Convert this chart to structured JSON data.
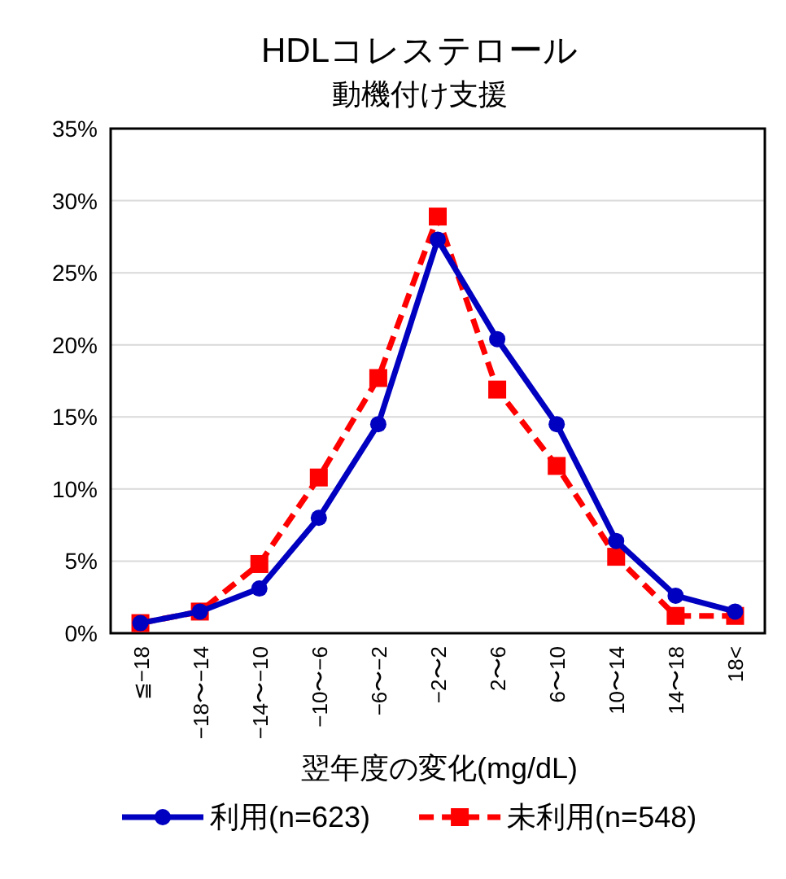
{
  "chart_data": {
    "type": "line",
    "title": "HDLコレステロール",
    "subtitle": "動機付け支援",
    "xlabel": "翌年度の変化(mg/dL)",
    "categories": [
      "≦−18",
      "−18〜−14",
      "−14〜−10",
      "−10〜−6",
      "−6〜−2",
      "−2〜2",
      "2〜6",
      "6〜10",
      "10〜14",
      "14〜18",
      "18<"
    ],
    "series": [
      {
        "name": "利用(n=623)",
        "color": "#0000c0",
        "marker": "circle",
        "line_style": "solid",
        "values": [
          0.7,
          1.5,
          3.1,
          8.0,
          14.5,
          27.3,
          20.4,
          14.5,
          6.4,
          2.6,
          1.5
        ]
      },
      {
        "name": "未利用(n=548)",
        "color": "#ff0000",
        "marker": "square",
        "line_style": "dashed",
        "values": [
          0.7,
          1.5,
          4.8,
          10.8,
          17.7,
          28.9,
          16.9,
          11.6,
          5.3,
          1.2,
          1.2
        ]
      }
    ],
    "ylim": [
      0,
      35
    ],
    "yticks": [
      {
        "value": 0,
        "label": "0%"
      },
      {
        "value": 5,
        "label": "5%"
      },
      {
        "value": 10,
        "label": "10%"
      },
      {
        "value": 15,
        "label": "15%"
      },
      {
        "value": 20,
        "label": "20%"
      },
      {
        "value": 25,
        "label": "25%"
      },
      {
        "value": 30,
        "label": "30%"
      },
      {
        "value": 35,
        "label": "35%"
      }
    ],
    "grid": "y",
    "legend": "bottom"
  }
}
